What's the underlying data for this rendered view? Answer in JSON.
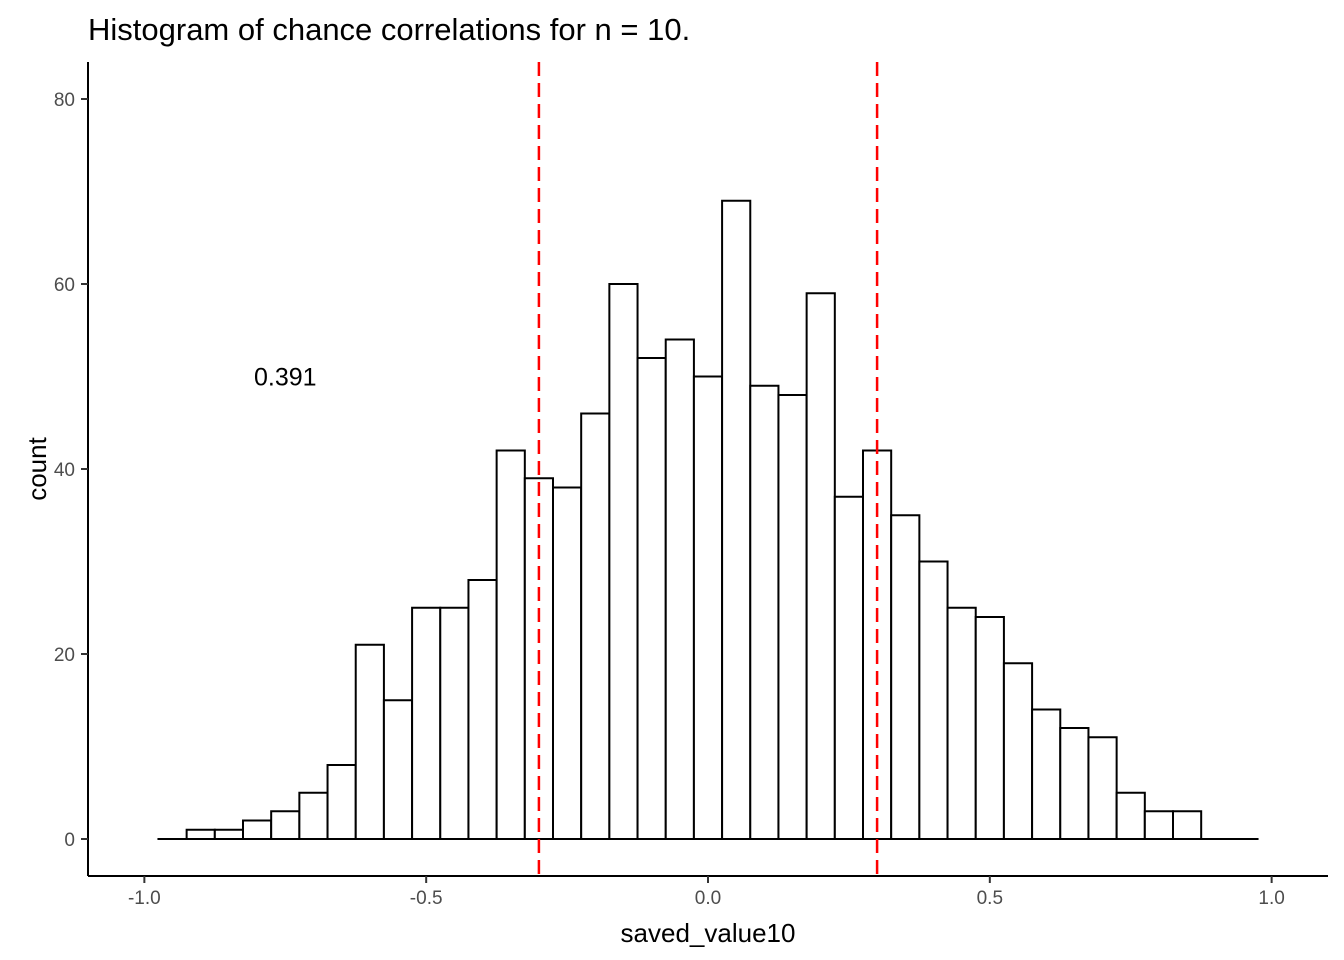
{
  "chart_data": {
    "type": "bar",
    "title": "Histogram of chance correlations for n = 10.",
    "xlabel": "saved_value10",
    "ylabel": "count",
    "xlim": [
      -1.1,
      1.1
    ],
    "ylim": [
      -4,
      84
    ],
    "x_ticks": [
      -1.0,
      -0.5,
      0.0,
      0.5,
      1.0
    ],
    "x_tick_labels": [
      "-1.0",
      "-0.5",
      "0.0",
      "0.5",
      "1.0"
    ],
    "y_ticks": [
      0,
      20,
      40,
      60,
      80
    ],
    "y_tick_labels": [
      "0",
      "20",
      "40",
      "60",
      "80"
    ],
    "grid": false,
    "bin_width": 0.05,
    "bin_centers": [
      -0.95,
      -0.9,
      -0.85,
      -0.8,
      -0.75,
      -0.7,
      -0.65,
      -0.6,
      -0.55,
      -0.5,
      -0.45,
      -0.4,
      -0.35,
      -0.3,
      -0.25,
      -0.2,
      -0.15,
      -0.1,
      -0.05,
      0.0,
      0.05,
      0.1,
      0.15,
      0.2,
      0.25,
      0.3,
      0.35,
      0.4,
      0.45,
      0.5,
      0.55,
      0.6,
      0.65,
      0.7,
      0.75,
      0.8,
      0.85,
      0.9,
      0.95
    ],
    "values": [
      0,
      1,
      1,
      2,
      3,
      5,
      8,
      21,
      15,
      25,
      25,
      28,
      42,
      39,
      38,
      46,
      60,
      52,
      54,
      50,
      69,
      49,
      48,
      59,
      37,
      42,
      35,
      30,
      25,
      24,
      19,
      14,
      12,
      11,
      5,
      3,
      3,
      0,
      0
    ],
    "vlines": [
      -0.3,
      0.3
    ],
    "vline_color": "#ff0000",
    "bar_fill": "#ffffff",
    "bar_stroke": "#000000",
    "annotation": {
      "text": "0.391",
      "x": -0.75,
      "y": 50
    }
  }
}
